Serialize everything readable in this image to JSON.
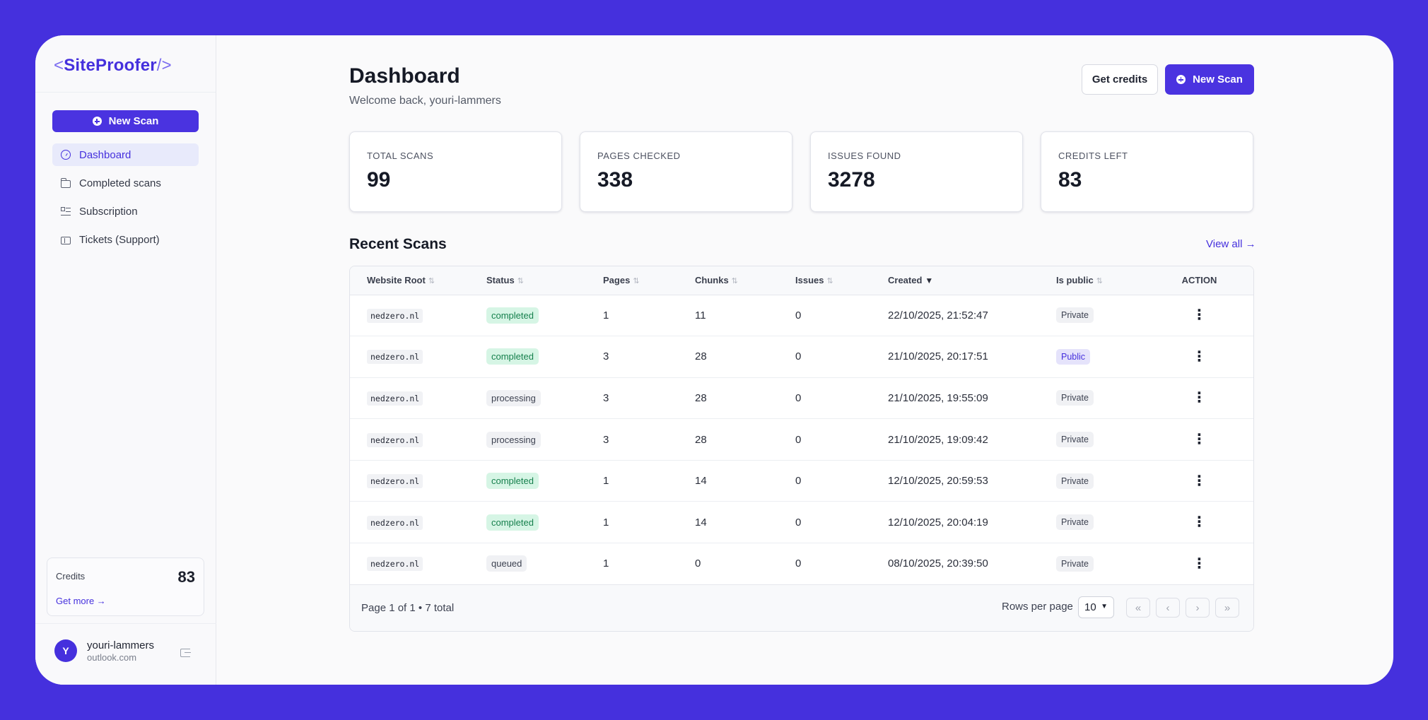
{
  "brand": {
    "open": "<",
    "name": "SiteProofer",
    "close": "/>"
  },
  "sidebar": {
    "new_scan_label": "New Scan",
    "items": [
      {
        "label": "Dashboard",
        "icon": "dashboard-icon",
        "active": true
      },
      {
        "label": "Completed scans",
        "icon": "folder-icon"
      },
      {
        "label": "Subscription",
        "icon": "list-icon"
      },
      {
        "label": "Tickets (Support)",
        "icon": "ticket-icon"
      }
    ],
    "credits": {
      "label": "Credits",
      "value": "83",
      "link": "Get more →"
    },
    "user": {
      "initial": "Y",
      "name": "youri-lammers",
      "email": "outlook.com"
    }
  },
  "header": {
    "title": "Dashboard",
    "subtitle": "Welcome back, youri-lammers",
    "get_credits_label": "Get credits",
    "new_scan_label": "New Scan"
  },
  "stats": [
    {
      "label": "TOTAL SCANS",
      "value": "99"
    },
    {
      "label": "PAGES CHECKED",
      "value": "338"
    },
    {
      "label": "ISSUES FOUND",
      "value": "3278"
    },
    {
      "label": "CREDITS LEFT",
      "value": "83"
    }
  ],
  "recent": {
    "title": "Recent Scans",
    "view_all": "View all →",
    "columns": [
      "Website Root",
      "Status",
      "Pages",
      "Chunks",
      "Issues",
      "Created",
      "Is public",
      "ACTION"
    ],
    "rows": [
      {
        "root": "nedzero.nl",
        "status": "completed",
        "pages": "1",
        "chunks": "11",
        "issues": "0",
        "created": "22/10/2025, 21:52:47",
        "visibility": "Private"
      },
      {
        "root": "nedzero.nl",
        "status": "completed",
        "pages": "3",
        "chunks": "28",
        "issues": "0",
        "created": "21/10/2025, 20:17:51",
        "visibility": "Public"
      },
      {
        "root": "nedzero.nl",
        "status": "processing",
        "pages": "3",
        "chunks": "28",
        "issues": "0",
        "created": "21/10/2025, 19:55:09",
        "visibility": "Private"
      },
      {
        "root": "nedzero.nl",
        "status": "processing",
        "pages": "3",
        "chunks": "28",
        "issues": "0",
        "created": "21/10/2025, 19:09:42",
        "visibility": "Private"
      },
      {
        "root": "nedzero.nl",
        "status": "completed",
        "pages": "1",
        "chunks": "14",
        "issues": "0",
        "created": "12/10/2025, 20:59:53",
        "visibility": "Private"
      },
      {
        "root": "nedzero.nl",
        "status": "completed",
        "pages": "1",
        "chunks": "14",
        "issues": "0",
        "created": "12/10/2025, 20:04:19",
        "visibility": "Private"
      },
      {
        "root": "nedzero.nl",
        "status": "queued",
        "pages": "1",
        "chunks": "0",
        "issues": "0",
        "created": "08/10/2025, 20:39:50",
        "visibility": "Private"
      }
    ],
    "footer": {
      "page_info": "Page 1 of 1 • 7 total",
      "rows_per_page_label": "Rows per page",
      "rows_per_page_value": "10"
    }
  },
  "colors": {
    "accent": "#4530dd",
    "background": "#4530dd",
    "success": "#16804d"
  }
}
